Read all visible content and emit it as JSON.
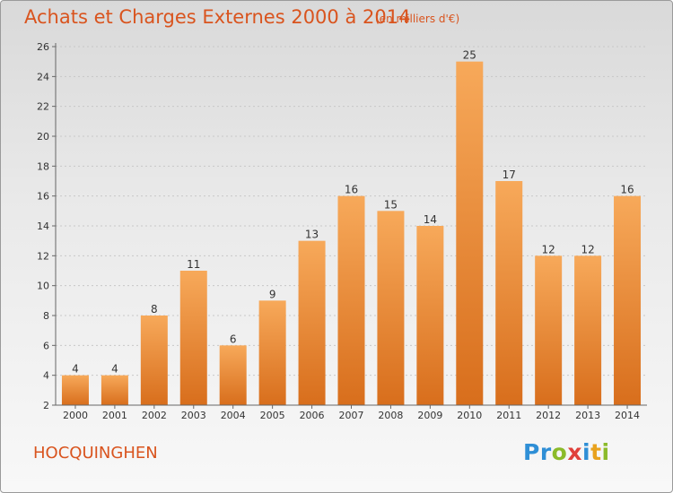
{
  "header": {
    "title": "Achats et Charges Externes 2000 à 2014",
    "subtitle": "(en milliers d'€)"
  },
  "footer": {
    "commune": "HOCQUINGHEN",
    "logo": {
      "text": "Proxiti",
      "colors": [
        "#2f8fd6",
        "#2f8fd6",
        "#8bbb2a",
        "#e0403a",
        "#2f8fd6",
        "#e8a21e",
        "#8bbb2a"
      ]
    }
  },
  "colors": {
    "bar_light": "#f7a95a",
    "bar_dark": "#d86e1c",
    "title": "#d9541e",
    "axis": "#666666",
    "grid": "#c8c8c8"
  },
  "chart_data": {
    "type": "bar",
    "title": "Achats et Charges Externes 2000 à 2014",
    "subtitle": "(en milliers d'€)",
    "xlabel": "",
    "ylabel": "",
    "categories": [
      "2000",
      "2001",
      "2002",
      "2003",
      "2004",
      "2005",
      "2006",
      "2007",
      "2008",
      "2009",
      "2010",
      "2011",
      "2012",
      "2013",
      "2014"
    ],
    "values": [
      4,
      4,
      8,
      11,
      6,
      9,
      13,
      16,
      15,
      14,
      25,
      17,
      12,
      12,
      16
    ],
    "ylim": [
      2,
      26
    ],
    "yticks": [
      2,
      4,
      6,
      8,
      10,
      12,
      14,
      16,
      18,
      20,
      22,
      24,
      26
    ],
    "grid": true,
    "data_labels": true
  }
}
